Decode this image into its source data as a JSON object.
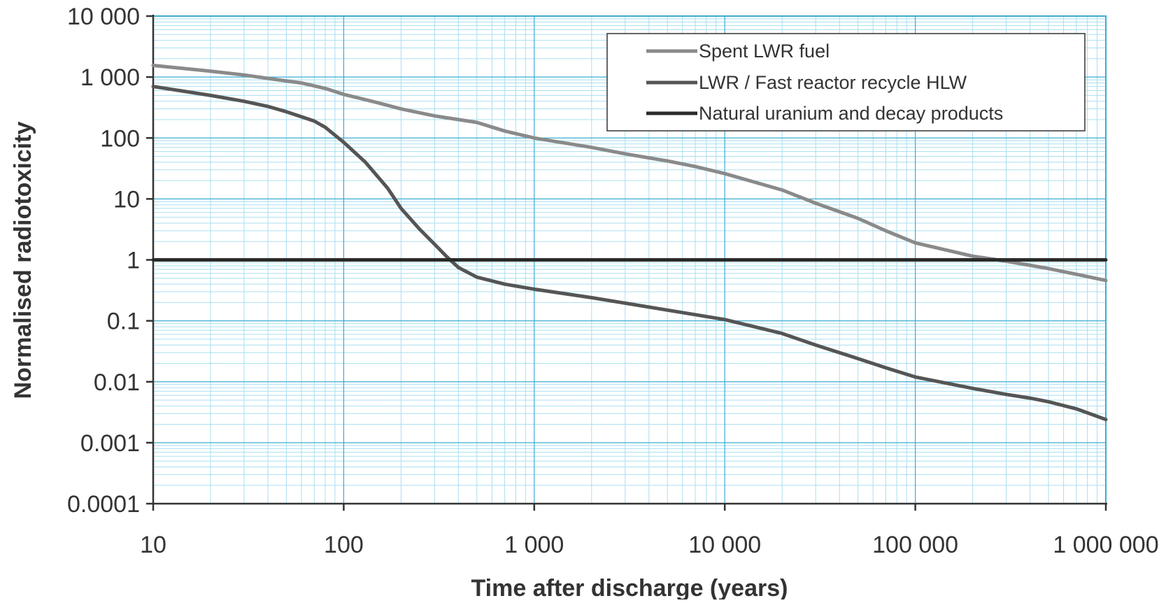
{
  "chart_data": {
    "type": "line",
    "title": "",
    "xlabel": "Time after discharge (years)",
    "ylabel": "Normalised radiotoxicity",
    "x_scale": "log",
    "y_scale": "log",
    "xlim": [
      10,
      1000000
    ],
    "ylim": [
      0.0001,
      10000
    ],
    "x_ticks": [
      {
        "value": 10,
        "label": "10"
      },
      {
        "value": 100,
        "label": "100"
      },
      {
        "value": 1000,
        "label": "1 000"
      },
      {
        "value": 10000,
        "label": "10 000"
      },
      {
        "value": 100000,
        "label": "100 000"
      },
      {
        "value": 1000000,
        "label": "1 000 000"
      }
    ],
    "y_ticks": [
      {
        "value": 0.0001,
        "label": "0.0001"
      },
      {
        "value": 0.001,
        "label": "0.001"
      },
      {
        "value": 0.01,
        "label": "0.01"
      },
      {
        "value": 0.1,
        "label": "0.1"
      },
      {
        "value": 1,
        "label": "1"
      },
      {
        "value": 10,
        "label": "10"
      },
      {
        "value": 100,
        "label": "100"
      },
      {
        "value": 1000,
        "label": "1 000"
      },
      {
        "value": 10000,
        "label": "10 000"
      }
    ],
    "grid": true,
    "grid_minor": true,
    "grid_color": "#a9dff0",
    "axis_color": "#3aaed0",
    "legend_position": "top-right",
    "series": [
      {
        "name": "Spent LWR fuel",
        "color": "#8a8a8a",
        "points": [
          [
            10,
            1550
          ],
          [
            20,
            1250
          ],
          [
            30,
            1080
          ],
          [
            40,
            950
          ],
          [
            60,
            800
          ],
          [
            80,
            650
          ],
          [
            100,
            520
          ],
          [
            150,
            380
          ],
          [
            200,
            300
          ],
          [
            300,
            230
          ],
          [
            500,
            180
          ],
          [
            700,
            130
          ],
          [
            1000,
            100
          ],
          [
            2000,
            70
          ],
          [
            3000,
            55
          ],
          [
            5000,
            42
          ],
          [
            7000,
            34
          ],
          [
            10000,
            26
          ],
          [
            20000,
            14
          ],
          [
            30000,
            8.5
          ],
          [
            50000,
            4.8
          ],
          [
            70000,
            3.0
          ],
          [
            100000,
            1.9
          ],
          [
            200000,
            1.15
          ],
          [
            300000,
            0.95
          ],
          [
            500000,
            0.72
          ],
          [
            700000,
            0.58
          ],
          [
            1000000,
            0.46
          ]
        ]
      },
      {
        "name": "LWR / Fast reactor recycle HLW",
        "color": "#555555",
        "points": [
          [
            10,
            700
          ],
          [
            20,
            500
          ],
          [
            30,
            400
          ],
          [
            40,
            330
          ],
          [
            50,
            270
          ],
          [
            70,
            190
          ],
          [
            80,
            150
          ],
          [
            100,
            85
          ],
          [
            130,
            40
          ],
          [
            170,
            15
          ],
          [
            200,
            7
          ],
          [
            250,
            3.2
          ],
          [
            300,
            1.8
          ],
          [
            350,
            1.1
          ],
          [
            400,
            0.75
          ],
          [
            500,
            0.52
          ],
          [
            700,
            0.4
          ],
          [
            1000,
            0.33
          ],
          [
            2000,
            0.24
          ],
          [
            5000,
            0.15
          ],
          [
            10000,
            0.105
          ],
          [
            20000,
            0.062
          ],
          [
            30000,
            0.04
          ],
          [
            50000,
            0.024
          ],
          [
            70000,
            0.017
          ],
          [
            100000,
            0.012
          ],
          [
            200000,
            0.0078
          ],
          [
            300000,
            0.0062
          ],
          [
            400000,
            0.0054
          ],
          [
            500000,
            0.0047
          ],
          [
            700000,
            0.0036
          ],
          [
            1000000,
            0.0024
          ]
        ]
      },
      {
        "name": "Natural uranium and decay products",
        "color": "#2b2b2b",
        "points": [
          [
            10,
            1
          ],
          [
            1000000,
            1
          ]
        ]
      }
    ]
  }
}
